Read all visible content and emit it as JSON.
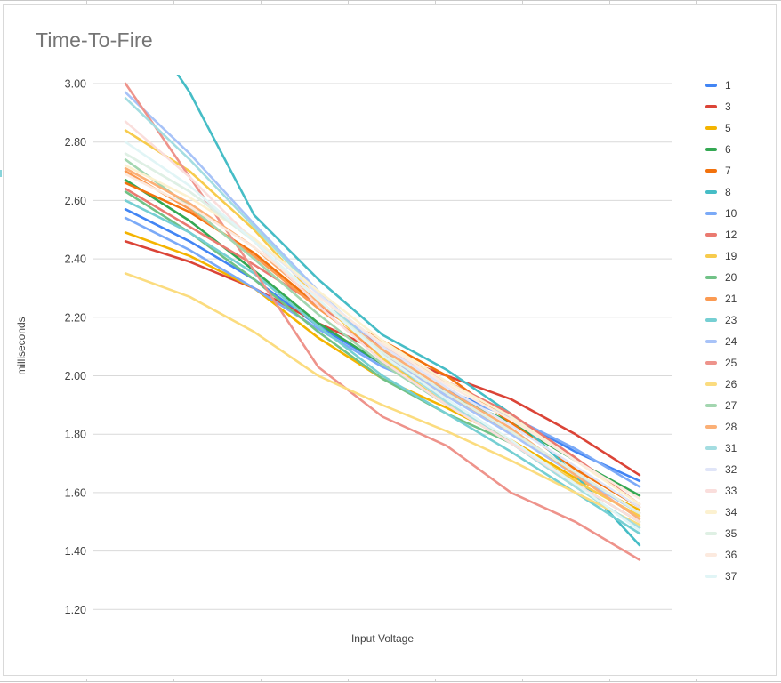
{
  "title": "Time-To-Fire",
  "axes": {
    "y_label": "milliseconds",
    "x_label": "Input Voltage",
    "y_ticks": [
      "3.00",
      "2.80",
      "2.60",
      "2.40",
      "2.20",
      "2.00",
      "1.80",
      "1.60",
      "1.40",
      "1.20"
    ]
  },
  "colors": {
    "gridline": "#d9d9d9",
    "title_text": "#757575",
    "axis_text": "#424242",
    "legend_text": "#3c3c3c",
    "spreadsheet_grid": "#c9c9c9",
    "cell_artifact": "#46BDC6"
  },
  "chart_data": {
    "type": "line",
    "title": "Time-To-Fire",
    "xlabel": "Input Voltage",
    "ylabel": "milliseconds",
    "ylim": [
      1.2,
      3.0
    ],
    "y_tick_step": 0.2,
    "grid": true,
    "legend_position": "right",
    "x_tick_labels_visible": false,
    "x": [
      1,
      2,
      3,
      4,
      5,
      6,
      7,
      8,
      9
    ],
    "series": [
      {
        "name": "1",
        "color": "#4285F4",
        "values": [
          2.57,
          2.46,
          2.33,
          2.17,
          2.04,
          1.95,
          1.86,
          1.74,
          1.64
        ]
      },
      {
        "name": "3",
        "color": "#DB4437",
        "values": [
          2.46,
          2.39,
          2.3,
          2.18,
          2.08,
          2.0,
          1.92,
          1.8,
          1.66
        ]
      },
      {
        "name": "5",
        "color": "#F4B400",
        "values": [
          2.49,
          2.41,
          2.3,
          2.13,
          1.99,
          1.89,
          1.78,
          1.65,
          1.54
        ]
      },
      {
        "name": "6",
        "color": "#34A853",
        "values": [
          2.67,
          2.53,
          2.36,
          2.18,
          2.04,
          1.94,
          1.84,
          1.71,
          1.59
        ]
      },
      {
        "name": "7",
        "color": "#F2720D",
        "values": [
          2.66,
          2.56,
          2.42,
          2.24,
          2.12,
          2.0,
          1.84,
          1.68,
          1.55
        ]
      },
      {
        "name": "8",
        "color": "#46BDC6",
        "values": [
          3.3,
          2.97,
          2.55,
          2.33,
          2.14,
          2.02,
          1.87,
          1.66,
          1.42
        ]
      },
      {
        "name": "10",
        "color": "#7BAAF7",
        "values": [
          2.54,
          2.43,
          2.3,
          2.16,
          2.03,
          1.94,
          1.86,
          1.75,
          1.62
        ]
      },
      {
        "name": "12",
        "color": "#EA7A70",
        "values": [
          2.64,
          2.51,
          2.38,
          2.24,
          2.1,
          1.98,
          1.87,
          1.72,
          1.56
        ]
      },
      {
        "name": "19",
        "color": "#F7CB4D",
        "values": [
          2.84,
          2.7,
          2.5,
          2.26,
          2.06,
          1.9,
          1.77,
          1.64,
          1.52
        ]
      },
      {
        "name": "20",
        "color": "#71C287",
        "values": [
          2.63,
          2.49,
          2.33,
          2.15,
          1.99,
          1.87,
          1.77,
          1.63,
          1.5
        ]
      },
      {
        "name": "21",
        "color": "#FB9A52",
        "values": [
          2.7,
          2.57,
          2.41,
          2.23,
          2.07,
          1.93,
          1.81,
          1.67,
          1.53
        ]
      },
      {
        "name": "23",
        "color": "#76CFD3",
        "values": [
          2.6,
          2.49,
          2.35,
          2.17,
          2.0,
          1.87,
          1.74,
          1.6,
          1.46
        ]
      },
      {
        "name": "24",
        "color": "#A8C3F8",
        "values": [
          2.97,
          2.76,
          2.52,
          2.29,
          2.08,
          1.93,
          1.8,
          1.66,
          1.53
        ]
      },
      {
        "name": "25",
        "color": "#EE938B",
        "values": [
          3.0,
          2.68,
          2.36,
          2.03,
          1.86,
          1.76,
          1.6,
          1.5,
          1.37
        ]
      },
      {
        "name": "26",
        "color": "#FBDC7F",
        "values": [
          2.35,
          2.27,
          2.15,
          2.0,
          1.9,
          1.81,
          1.71,
          1.6,
          1.49
        ]
      },
      {
        "name": "27",
        "color": "#A3D6B0",
        "values": [
          2.74,
          2.58,
          2.4,
          2.21,
          2.04,
          1.9,
          1.77,
          1.62,
          1.48
        ]
      },
      {
        "name": "28",
        "color": "#FBB077",
        "values": [
          2.71,
          2.59,
          2.44,
          2.25,
          2.09,
          1.95,
          1.82,
          1.66,
          1.51
        ]
      },
      {
        "name": "31",
        "color": "#A4DDE1",
        "values": [
          2.95,
          2.74,
          2.51,
          2.28,
          2.07,
          1.91,
          1.77,
          1.62,
          1.48
        ]
      },
      {
        "name": "32",
        "color": "#E0E5F8",
        "values": [
          2.76,
          2.63,
          2.47,
          2.28,
          2.1,
          1.96,
          1.83,
          1.69,
          1.55
        ]
      },
      {
        "name": "33",
        "color": "#FADEDC",
        "values": [
          2.87,
          2.68,
          2.46,
          2.24,
          2.05,
          1.9,
          1.77,
          1.63,
          1.5
        ]
      },
      {
        "name": "34",
        "color": "#FCF1D0",
        "values": [
          2.72,
          2.61,
          2.47,
          2.29,
          2.12,
          1.98,
          1.86,
          1.71,
          1.56
        ]
      },
      {
        "name": "35",
        "color": "#DFF0E4",
        "values": [
          2.76,
          2.63,
          2.46,
          2.26,
          2.08,
          1.94,
          1.81,
          1.67,
          1.53
        ]
      },
      {
        "name": "36",
        "color": "#FCEADF",
        "values": [
          2.69,
          2.58,
          2.44,
          2.27,
          2.11,
          1.97,
          1.85,
          1.71,
          1.58
        ]
      },
      {
        "name": "37",
        "color": "#E1F5F6",
        "values": [
          2.8,
          2.65,
          2.46,
          2.26,
          2.07,
          1.92,
          1.78,
          1.63,
          1.47
        ]
      }
    ]
  }
}
